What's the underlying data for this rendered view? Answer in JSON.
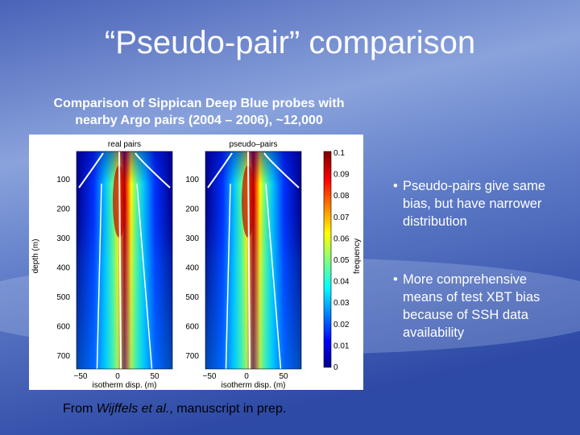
{
  "slide": {
    "title": "“Pseudo-pair” comparison",
    "subtitle_lines": [
      "Comparison of Sippican Deep Blue probes with",
      "nearby Argo pairs (2004 – 2006), ~12,000"
    ],
    "figure": {
      "panels": [
        {
          "title": "real pairs",
          "y_label": "depth (m)",
          "x_label": "isotherm disp. (m)"
        },
        {
          "title": "pseudo–pairs",
          "x_label": "isotherm disp. (m)"
        }
      ],
      "y_ticks": [
        "100",
        "200",
        "300",
        "400",
        "500",
        "600",
        "700"
      ],
      "x_ticks": [
        "−50",
        "0",
        "50"
      ],
      "colorbar_ticks": [
        "0.1",
        "0.09",
        "0.08",
        "0.07",
        "0.06",
        "0.05",
        "0.04",
        "0.03",
        "0.02",
        "0.01",
        "0"
      ],
      "colorbar_label": "frequency"
    },
    "bullets": [
      "Pseudo-pairs give same bias, but have narrower distribution",
      "More comprehensive means of test XBT bias because of SSH data availability"
    ],
    "footer": {
      "before": "From ",
      "italic": "Wijffels et al.",
      "after": ", manuscript in prep."
    }
  }
}
